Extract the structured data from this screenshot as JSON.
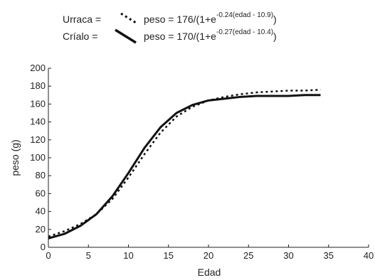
{
  "chart_data": {
    "type": "line",
    "xlabel": "Edad",
    "ylabel": "peso (g)",
    "xlim": [
      0,
      40
    ],
    "ylim": [
      0,
      200
    ],
    "xticks": [
      0,
      5,
      10,
      15,
      20,
      25,
      30,
      35,
      40
    ],
    "yticks": [
      0,
      20,
      40,
      60,
      80,
      100,
      120,
      140,
      160,
      180,
      200
    ],
    "grid": false,
    "legend_position": "top",
    "series": [
      {
        "name": "Urraca",
        "line_style": "dotted",
        "equation_label": "Urraca = ",
        "equation_prefix": "peso = 176/(1+e",
        "equation_exponent": "-0.24(edad - 10.9)",
        "equation_suffix": ")",
        "x": [
          0,
          2,
          4,
          6,
          8,
          10,
          12,
          14,
          16,
          18,
          20,
          22,
          24,
          26,
          28,
          30,
          32,
          34
        ],
        "y": [
          12,
          18,
          26,
          37,
          54,
          78,
          104,
          128,
          146,
          157,
          164,
          168,
          171,
          173,
          174,
          175,
          175,
          176
        ]
      },
      {
        "name": "Crialo",
        "line_style": "solid",
        "equation_label": "Críalo = ",
        "equation_prefix": "peso = 170/(1+e",
        "equation_exponent": "-0.27(edad - 10.4)",
        "equation_suffix": ")",
        "x": [
          0,
          2,
          4,
          6,
          8,
          10,
          12,
          14,
          16,
          18,
          20,
          22,
          24,
          26,
          28,
          30,
          32,
          34
        ],
        "y": [
          10,
          15,
          24,
          37,
          57,
          83,
          111,
          134,
          150,
          159,
          164,
          166,
          168,
          169,
          169,
          169,
          170,
          170
        ]
      }
    ]
  }
}
